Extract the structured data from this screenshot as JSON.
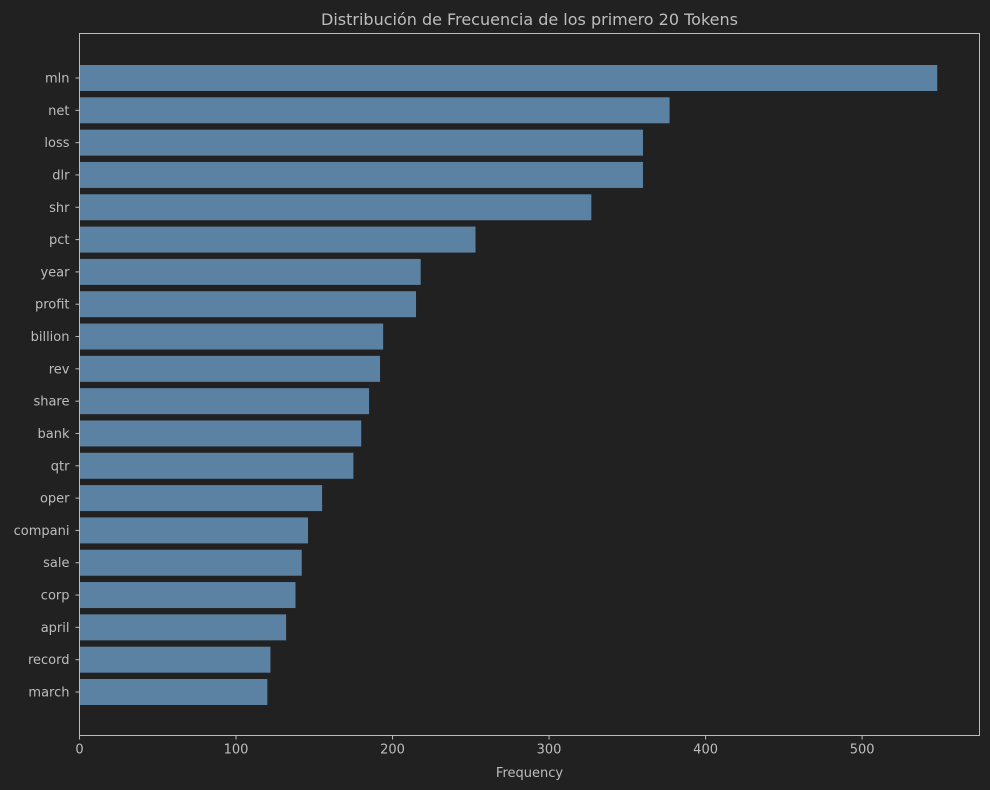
{
  "chart_data": {
    "type": "bar",
    "orientation": "horizontal",
    "title": "Distribución de Frecuencia de los primero 20 Tokens",
    "xlabel": "Frequency",
    "ylabel": "",
    "categories": [
      "mln",
      "net",
      "loss",
      "dlr",
      "shr",
      "pct",
      "year",
      "profit",
      "billion",
      "rev",
      "share",
      "bank",
      "qtr",
      "oper",
      "compani",
      "sale",
      "corp",
      "april",
      "record",
      "march"
    ],
    "values": [
      548,
      377,
      360,
      360,
      327,
      253,
      218,
      215,
      194,
      192,
      185,
      180,
      175,
      155,
      146,
      142,
      138,
      132,
      122,
      120
    ],
    "xlim": [
      0,
      575
    ],
    "xticks": [
      0,
      100,
      200,
      300,
      400,
      500
    ],
    "grid": false,
    "bar_color": "#5b82a2",
    "background_color": "#212121",
    "text_color": "#bdbdbd"
  }
}
